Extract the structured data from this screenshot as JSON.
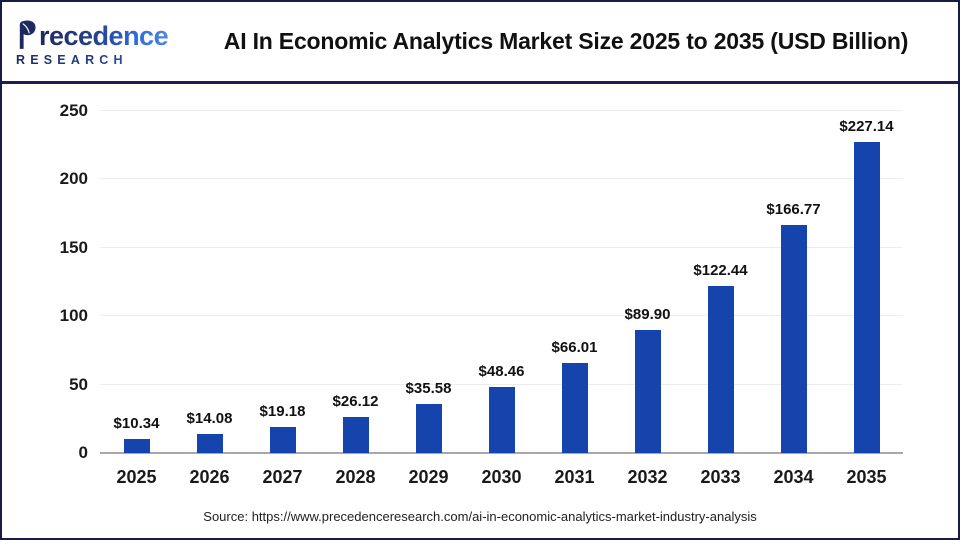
{
  "header": {
    "logo": {
      "brand": "Precedence Research",
      "wordmark_rest": "recedence",
      "subline": "RESEARCH"
    },
    "title": "AI In Economic Analytics Market Size 2025 to 2035 (USD Billion)"
  },
  "chart_data": {
    "type": "bar",
    "title": "AI In Economic Analytics Market Size 2025 to 2035 (USD Billion)",
    "categories": [
      "2025",
      "2026",
      "2027",
      "2028",
      "2029",
      "2030",
      "2031",
      "2032",
      "2033",
      "2034",
      "2035"
    ],
    "values": [
      10.34,
      14.08,
      19.18,
      26.12,
      35.58,
      48.46,
      66.01,
      89.9,
      122.44,
      166.77,
      227.14
    ],
    "value_prefix": "$",
    "value_decimals": 2,
    "xlabel": "",
    "ylabel": "",
    "ylim": [
      0,
      250
    ],
    "yticks": [
      0,
      50,
      100,
      150,
      200,
      250
    ],
    "grid": true,
    "legend": false,
    "bar_color": "#1444ac"
  },
  "footer": {
    "source": "Source: https://www.precedenceresearch.com/ai-in-economic-analytics-market-industry-analysis"
  },
  "colors": {
    "bar": "#1444ac",
    "frame_navy": "#1b2151",
    "baseline_gray": "#a8a8a8",
    "gridline_gray": "#ededed"
  }
}
